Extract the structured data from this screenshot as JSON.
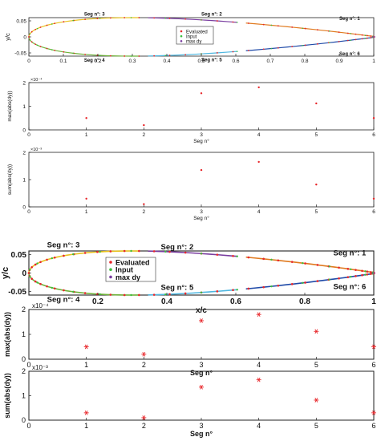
{
  "figure": {
    "description_hidden": false
  },
  "legend_items": [
    "Evaluated",
    "Input",
    "max dy"
  ],
  "colors": {
    "evaluated": "#e8262a",
    "input": "#3cbf3c",
    "maxdy": "#7a3ea0",
    "seg_colors": [
      "#1f4aa8",
      "#e07a1f",
      "#e8c21f",
      "#7a3ea0",
      "#6fb23a",
      "#4fb7e0"
    ],
    "axis": "#222222"
  },
  "chart_data": [
    {
      "type": "line",
      "panel": "top-airfoil",
      "xlabel": "",
      "ylabel": "y/c",
      "xlim": [
        0,
        1
      ],
      "ylim": [
        -0.06,
        0.06
      ],
      "x_ticks": [
        0,
        0.1,
        0.2,
        0.3,
        0.4,
        0.5,
        0.6,
        0.7,
        0.8,
        0.9,
        1
      ],
      "x_tick_labels": [
        "0",
        "0.1",
        "0.2",
        "0.3",
        "0.4",
        "0.5",
        "0.6",
        "0.7",
        "0.8",
        "0.9",
        "1"
      ],
      "y_ticks": [
        -0.05,
        0,
        0.05
      ],
      "y_tick_labels": [
        "-0.05",
        "0",
        "0.05"
      ],
      "segment_labels": [
        "Seg n°: 1",
        "Seg n°: 2",
        "Seg n°: 3",
        "Seg n°: 4",
        "Seg n°: 5",
        "Seg n°: 6"
      ],
      "segment_label_anchor": [
        {
          "x": 0.93,
          "y": 0.052
        },
        {
          "x": 0.53,
          "y": 0.066
        },
        {
          "x": 0.19,
          "y": 0.066
        },
        {
          "x": 0.19,
          "y": -0.078
        },
        {
          "x": 0.53,
          "y": -0.076
        },
        {
          "x": 0.93,
          "y": -0.058
        }
      ],
      "legend": [
        "Evaluated",
        "Input",
        "max dy"
      ],
      "legend_position": "center",
      "airfoil": {
        "thickness": 0.12,
        "max_camber_x": 0.33
      }
    },
    {
      "type": "scatter",
      "panel": "top-max",
      "xlabel": "Seg n°",
      "ylabel": "max(abs(dy))",
      "exponent_label": "×10⁻⁴",
      "x": [
        1,
        2,
        3,
        4,
        5,
        6
      ],
      "y": [
        0.5,
        0.2,
        1.55,
        1.8,
        1.12,
        0.5
      ],
      "xlim": [
        0,
        6
      ],
      "ylim": [
        0,
        2
      ],
      "x_ticks": [
        0,
        1,
        2,
        3,
        4,
        5,
        6
      ],
      "y_ticks": [
        0,
        1,
        2
      ]
    },
    {
      "type": "scatter",
      "panel": "top-sum",
      "xlabel": "Seg n°",
      "ylabel": "sum(abs(dy))",
      "exponent_label": "×10⁻³",
      "x": [
        1,
        2,
        3,
        4,
        5,
        6
      ],
      "y": [
        0.3,
        0.1,
        1.35,
        1.65,
        0.82,
        0.3
      ],
      "xlim": [
        0,
        6
      ],
      "ylim": [
        0,
        2
      ],
      "x_ticks": [
        0,
        1,
        2,
        3,
        4,
        5,
        6
      ],
      "y_ticks": [
        0,
        1,
        2
      ]
    },
    {
      "type": "line",
      "panel": "bottom-airfoil",
      "xlabel": "x/c",
      "ylabel": "y/c",
      "xlim": [
        0,
        1
      ],
      "ylim": [
        -0.06,
        0.06
      ],
      "x_ticks": [
        0.2,
        0.4,
        0.6,
        0.8,
        1
      ],
      "x_tick_labels": [
        "0.2",
        "0.4",
        "0.6",
        "0.8",
        "1"
      ],
      "y_ticks": [
        -0.05,
        0,
        0.05
      ],
      "y_tick_labels": [
        "-0.05",
        "0",
        "0.05"
      ],
      "segment_labels": [
        "Seg n°: 1",
        "Seg n°: 2",
        "Seg n°: 3",
        "Seg n°: 4",
        "Seg n°: 5",
        "Seg n°: 6"
      ],
      "segment_label_anchor": [
        {
          "x": 0.93,
          "y": 0.048
        },
        {
          "x": 0.43,
          "y": 0.064
        },
        {
          "x": 0.1,
          "y": 0.07
        },
        {
          "x": 0.1,
          "y": -0.078
        },
        {
          "x": 0.43,
          "y": -0.046
        },
        {
          "x": 0.93,
          "y": -0.044
        }
      ],
      "legend": [
        "Evaluated",
        "Input",
        "max dy"
      ],
      "legend_position": "center-left",
      "airfoil": {
        "thickness": 0.12,
        "max_camber_x": 0.33
      }
    },
    {
      "type": "scatter",
      "panel": "bottom-max",
      "xlabel": "Seg n°",
      "ylabel": "max(abs(dy))",
      "exponent_label": "x10⁻⁴",
      "x": [
        1,
        2,
        3,
        4,
        5,
        6
      ],
      "y": [
        0.5,
        0.2,
        1.55,
        1.8,
        1.12,
        0.5
      ],
      "xlim": [
        0,
        6
      ],
      "ylim": [
        0,
        2
      ],
      "x_ticks": [
        0,
        1,
        2,
        3,
        4,
        5,
        6
      ],
      "y_ticks": [
        0,
        1,
        2
      ]
    },
    {
      "type": "scatter",
      "panel": "bottom-sum",
      "xlabel": "Seg n°",
      "ylabel": "sum(abs(dy))",
      "exponent_label": "x10⁻³",
      "x": [
        1,
        2,
        3,
        4,
        5,
        6
      ],
      "y": [
        0.3,
        0.1,
        1.35,
        1.65,
        0.82,
        0.3
      ],
      "xlim": [
        0,
        6
      ],
      "ylim": [
        0,
        2
      ],
      "x_ticks": [
        0,
        1,
        2,
        3,
        4,
        5,
        6
      ],
      "y_ticks": [
        0,
        1,
        2
      ]
    }
  ]
}
